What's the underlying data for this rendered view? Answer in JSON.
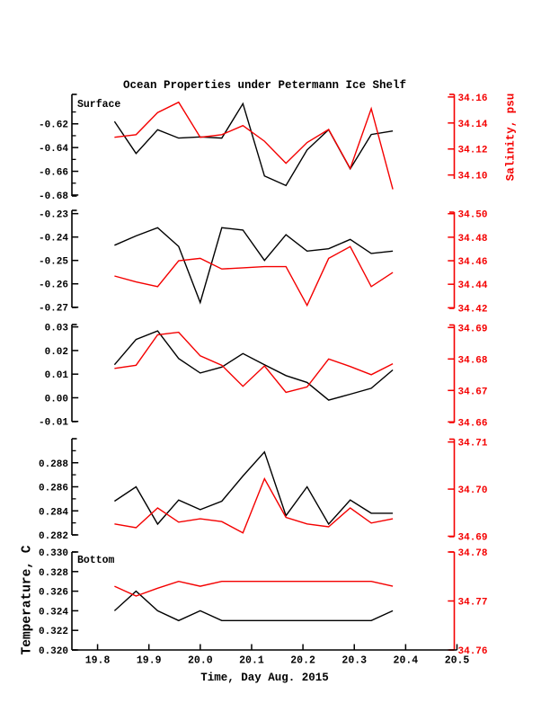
{
  "chart_data": {
    "type": "line",
    "title": "Ocean Properties under Petermann Ice Shelf",
    "xlabel": "Time, Day Aug. 2015",
    "ylabel_left": "Temperature, C",
    "ylabel_right": "Salinity, psu",
    "legend": "none",
    "grid": false,
    "colors": {
      "temperature": "#000000",
      "salinity": "#f40000"
    },
    "x": [
      19.833,
      19.875,
      19.917,
      19.958,
      20.0,
      20.042,
      20.083,
      20.125,
      20.167,
      20.208,
      20.25,
      20.292,
      20.333,
      20.375
    ],
    "x_axis": {
      "ticks": [
        "19.8",
        "19.9",
        "20.0",
        "20.1",
        "20.2",
        "20.3",
        "20.4",
        "20.5"
      ],
      "range": [
        19.75,
        20.5
      ]
    },
    "panels": [
      {
        "label": "Surface",
        "temperature": {
          "values": [
            -0.618,
            -0.645,
            -0.625,
            -0.632,
            -0.631,
            -0.632,
            -0.603,
            -0.664,
            -0.672,
            -0.642,
            -0.625,
            -0.658,
            -0.629,
            -0.626
          ],
          "ticks": [
            "-0.62",
            "-0.64",
            "-0.66",
            "-0.68"
          ],
          "minor_ticks": [
            -0.61,
            -0.63,
            -0.65,
            -0.67
          ],
          "range": [
            -0.6808,
            -0.5952
          ]
        },
        "salinity": {
          "values": [
            34.129,
            34.131,
            34.148,
            34.156,
            34.129,
            34.131,
            34.138,
            34.126,
            34.109,
            34.125,
            34.135,
            34.105,
            34.151,
            34.089
          ],
          "ticks": [
            "34.16",
            "34.14",
            "34.12",
            "34.10"
          ],
          "range": [
            34.097,
            34.162
          ]
        }
      },
      {
        "label": "",
        "temperature": {
          "values": [
            -0.2435,
            -0.2395,
            -0.236,
            -0.244,
            -0.268,
            -0.236,
            -0.237,
            -0.25,
            -0.239,
            -0.246,
            -0.245,
            -0.241,
            -0.247,
            -0.246
          ],
          "ticks": [
            "-0.23",
            "-0.24",
            "-0.25",
            "-0.26",
            "-0.27"
          ],
          "minor_ticks": [],
          "range": [
            -0.2701,
            -0.2286
          ]
        },
        "salinity": {
          "values": [
            34.447,
            34.442,
            34.438,
            34.46,
            34.462,
            34.453,
            34.454,
            34.455,
            34.455,
            34.422,
            34.462,
            34.472,
            34.438,
            34.45
          ],
          "ticks": [
            "34.50",
            "34.48",
            "34.46",
            "34.44",
            "34.42"
          ],
          "range": [
            34.4195,
            34.5013
          ]
        }
      },
      {
        "label": "",
        "temperature": {
          "values": [
            0.014,
            0.0247,
            0.0283,
            0.0166,
            0.0105,
            0.013,
            0.0187,
            0.014,
            0.0094,
            0.0065,
            -0.001,
            0.0015,
            0.004,
            0.0118
          ],
          "ticks": [
            "0.03",
            "0.02",
            "0.01",
            "0.00",
            "-0.01"
          ],
          "minor_ticks": [],
          "range": [
            -0.0101,
            0.031
          ]
        },
        "salinity": {
          "values": [
            34.677,
            34.678,
            34.6877,
            34.6885,
            34.681,
            34.678,
            34.6713,
            34.6778,
            34.6694,
            34.6711,
            34.68,
            34.6776,
            34.675,
            34.6785
          ],
          "ticks": [
            "34.69",
            "34.68",
            "34.67",
            "34.66"
          ],
          "range": [
            34.6598,
            34.6908
          ]
        }
      },
      {
        "label": "",
        "temperature": {
          "values": [
            0.2848,
            0.286,
            0.2829,
            0.2849,
            0.2841,
            0.2848,
            0.2869,
            0.2889,
            0.2836,
            0.286,
            0.2829,
            0.2849,
            0.2838,
            0.2838
          ],
          "ticks": [
            "0.288",
            "0.286",
            "0.284",
            "0.282"
          ],
          "minor_ticks": [
            0.289,
            0.287,
            0.285,
            0.283
          ],
          "range": [
            0.282,
            0.29
          ]
        },
        "salinity": {
          "values": [
            34.6926,
            34.6918,
            34.696,
            34.693,
            34.6937,
            34.6931,
            34.6907,
            34.7022,
            34.694,
            34.6926,
            34.692,
            34.696,
            34.6928,
            34.6937
          ],
          "ticks": [
            "34.71",
            "34.70",
            "34.69"
          ],
          "range": [
            34.6899,
            34.7106
          ]
        }
      },
      {
        "label": "Bottom",
        "temperature": {
          "values": [
            0.324,
            0.326,
            0.324,
            0.323,
            0.324,
            0.323,
            0.323,
            0.323,
            0.323,
            0.323,
            0.323,
            0.323,
            0.323,
            0.324
          ],
          "ticks": [
            "0.330",
            "0.328",
            "0.326",
            "0.324",
            "0.322",
            "0.320"
          ],
          "minor_ticks": [],
          "range": [
            0.32,
            0.33
          ]
        },
        "salinity": {
          "values": [
            34.773,
            34.771,
            34.7726,
            34.774,
            34.773,
            34.774,
            34.774,
            34.774,
            34.774,
            34.774,
            34.774,
            34.774,
            34.774,
            34.773
          ],
          "ticks": [
            "34.78",
            "34.77",
            "34.76"
          ],
          "range": [
            34.76,
            34.78
          ]
        }
      }
    ]
  }
}
